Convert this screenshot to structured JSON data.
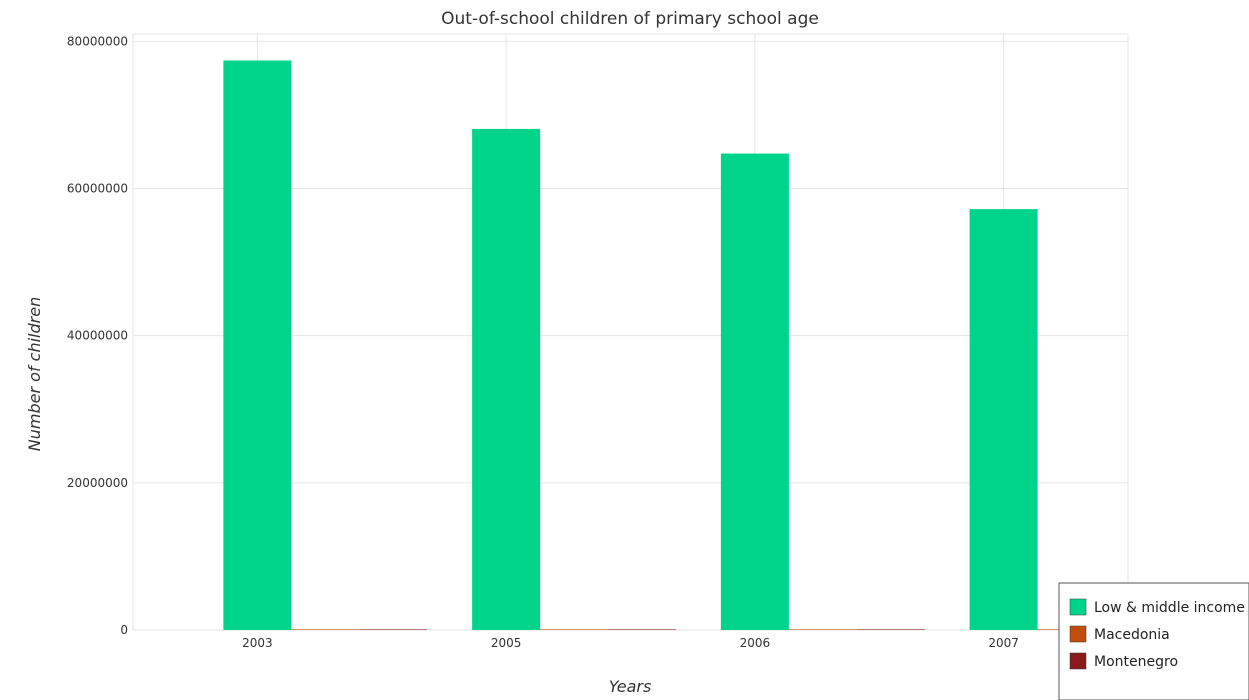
{
  "chart_data": {
    "type": "bar",
    "title": "Out-of-school children of primary school age",
    "xlabel": "Years",
    "ylabel": "Number of children",
    "categories": [
      "2003",
      "2005",
      "2006",
      "2007"
    ],
    "series": [
      {
        "name": "Low & middle income",
        "color": "#00d48a",
        "values": [
          77400000,
          68100000,
          64750000,
          57200000
        ]
      },
      {
        "name": "Macedonia",
        "color": "#c14e0f",
        "values": [
          3000,
          3000,
          3000,
          3000
        ]
      },
      {
        "name": "Montenegro",
        "color": "#8b1a1a",
        "values": [
          2000,
          2000,
          2000,
          2000
        ]
      }
    ],
    "ylim": [
      0,
      81000000
    ],
    "yticks": [
      0,
      20000000,
      40000000,
      60000000,
      80000000
    ],
    "ytick_labels": [
      "0",
      "20000000",
      "40000000",
      "60000000",
      "80000000"
    ],
    "grid": true,
    "legend_position": "bottom-right"
  }
}
